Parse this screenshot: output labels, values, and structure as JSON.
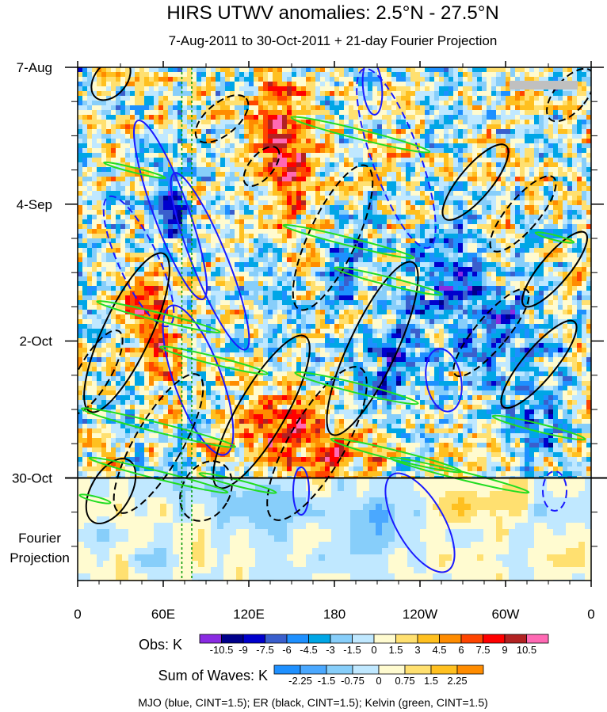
{
  "chart_data": {
    "type": "heatmap",
    "title": "HIRS UTWV anomalies: 2.5°N - 27.5°N",
    "subtitle": "7-Aug-2011 to 30-Oct-2011 + 21-day Fourier Projection",
    "xlabel": "",
    "ylabel": "",
    "x_ticks": [
      "0",
      "60E",
      "120E",
      "180",
      "120W",
      "60W",
      "0"
    ],
    "x_tick_values": [
      0,
      60,
      120,
      180,
      240,
      300,
      360
    ],
    "xlim": [
      0,
      360
    ],
    "y_ticks": [
      "7-Aug",
      "4-Sep",
      "2-Oct",
      "30-Oct"
    ],
    "y_tick_values": [
      0,
      28,
      56,
      84
    ],
    "ylim": [
      0,
      105
    ],
    "projection_label": [
      "Fourier",
      "Projection"
    ],
    "obs_colorbar": {
      "label": "Obs: K",
      "levels": [
        "-10.5",
        "-9",
        "-7.5",
        "-6",
        "-4.5",
        "-3",
        "-1.5",
        "0",
        "1.5",
        "3",
        "4.5",
        "6",
        "7.5",
        "9",
        "10.5"
      ],
      "colors": [
        "#8a2be2",
        "#00008b",
        "#0000cd",
        "#3a5fcd",
        "#1e90ff",
        "#00a6e6",
        "#87cefa",
        "#c0e8ff",
        "#fffbd0",
        "#ffe070",
        "#ffc020",
        "#ff8c00",
        "#ff4500",
        "#ff0000",
        "#b22222",
        "#ff69b4"
      ]
    },
    "waves_colorbar": {
      "label": "Sum of Waves: K",
      "levels": [
        "-2.25",
        "-1.5",
        "-0.75",
        "0",
        "0.75",
        "1.5",
        "2.25"
      ],
      "colors": [
        "#1e90ff",
        "#4aa8ff",
        "#87cefa",
        "#c0e8ff",
        "#fffbd0",
        "#ffe070",
        "#ffc020",
        "#ff8c00"
      ]
    },
    "footnote": "MJO (blue, CINT=1.5); ER (black, CINT=1.5); Kelvin (green, CINT=1.5)",
    "series": [
      {
        "name": "MJO",
        "color": "#1a1aff",
        "cint": 1.5
      },
      {
        "name": "ER",
        "color": "#000000",
        "cint": 1.5
      },
      {
        "name": "Kelvin",
        "color": "#22dd22",
        "cint": 1.5
      }
    ],
    "dashed_reference_lines_x": [
      73,
      80
    ]
  }
}
